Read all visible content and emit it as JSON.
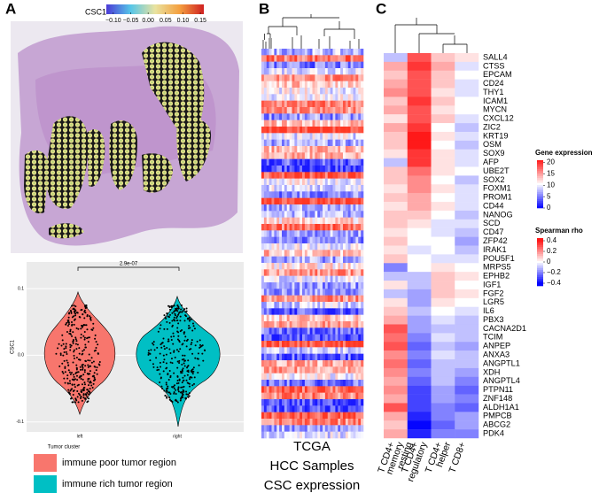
{
  "panels": {
    "a": "A",
    "b": "B",
    "c": "C"
  },
  "panel_a": {
    "colorbar": {
      "title": "CSC1",
      "lim": [
        -0.12,
        0.16
      ],
      "ticks": [
        {
          "value": -0.1,
          "label": "−0.10"
        },
        {
          "value": -0.05,
          "label": "−0.05"
        },
        {
          "value": 0,
          "label": "0.00"
        },
        {
          "value": 0.05,
          "label": "0.05"
        },
        {
          "value": 0.1,
          "label": "0.10"
        },
        {
          "value": 0.15,
          "label": "0.15"
        }
      ]
    },
    "violin": {
      "ylabel": "CSC1",
      "xlabel": "Tumor cluster",
      "categories": [
        "left",
        "right"
      ],
      "colors": [
        "#f8766d",
        "#00bfc4"
      ],
      "pvalue": "2.9e-07",
      "ylim": [
        -0.115,
        0.14
      ],
      "yticks": [
        0.1,
        {
          "value": 0,
          "label": "0.0"
        },
        -0.1
      ]
    },
    "legend": [
      "immune poor tumor region",
      "immune rich tumor region"
    ]
  },
  "panel_b": {
    "caption": [
      "TCGA",
      "HCC Samples",
      "CSC expression"
    ]
  },
  "panel_c": {
    "columns": [
      [
        "T CD4+",
        "memory",
        "resting"
      ],
      [
        "T CD4+",
        "regulatory"
      ],
      [
        "T CD4+",
        "helper"
      ],
      [
        "T CD8+"
      ]
    ],
    "genes": [
      "SALL4",
      "CTSS",
      "EPCAM",
      "CD24",
      "THY1",
      "ICAM1",
      "MYCN",
      "CXCL12",
      "ZIC2",
      "KRT19",
      "OSM",
      "SOX9",
      "AFP",
      "UBE2T",
      "SOX2",
      "FOXM1",
      "PROM1",
      "CD44",
      "NANOG",
      "SCD",
      "CD47",
      "ZFP42",
      "IRAK1",
      "POU5F1",
      "MRPS5",
      "EPHB2",
      "IGF1",
      "FGF2",
      "LGR5",
      "IL6",
      "PBX3",
      "CACNA2D1",
      "TCIM",
      "ANPEP",
      "ANXA3",
      "ANGPTL1",
      "XDH",
      "ANGPTL4",
      "PTPN11",
      "ZNF148",
      "ALDH1A1",
      "PMPCB",
      "ABCG2",
      "PDK4"
    ],
    "values": [
      [
        -0.1,
        0.3,
        0.1,
        0.05
      ],
      [
        0.15,
        0.35,
        0.15,
        -0.05
      ],
      [
        0.1,
        0.3,
        0.1,
        0
      ],
      [
        0.15,
        0.3,
        0.1,
        -0.05
      ],
      [
        0.2,
        0.3,
        0.05,
        -0.05
      ],
      [
        0.1,
        0.35,
        0.1,
        0
      ],
      [
        0.15,
        0.3,
        0.05,
        0
      ],
      [
        0.05,
        0.3,
        0.1,
        -0.05
      ],
      [
        0.15,
        0.35,
        0,
        -0.1
      ],
      [
        0.1,
        0.4,
        0.05,
        -0.05
      ],
      [
        0.1,
        0.4,
        0,
        -0.1
      ],
      [
        0.05,
        0.35,
        0.05,
        -0.05
      ],
      [
        -0.1,
        0.35,
        0.05,
        -0.05
      ],
      [
        0.1,
        0.25,
        0.05,
        0
      ],
      [
        0.1,
        0.2,
        0,
        -0.1
      ],
      [
        0.05,
        0.2,
        0.05,
        -0.05
      ],
      [
        0.1,
        0.15,
        0,
        -0.05
      ],
      [
        0.05,
        0.15,
        0.05,
        -0.05
      ],
      [
        0.1,
        0.1,
        0,
        -0.1
      ],
      [
        0.1,
        0.05,
        -0.05,
        -0.05
      ],
      [
        0.05,
        0,
        -0.05,
        -0.1
      ],
      [
        0.1,
        0,
        0,
        -0.15
      ],
      [
        0.05,
        -0.05,
        0,
        -0.1
      ],
      [
        0.1,
        0,
        -0.05,
        -0.05
      ],
      [
        -0.2,
        0,
        0.05,
        0
      ],
      [
        -0.1,
        -0.1,
        0.1,
        0.05
      ],
      [
        0.05,
        -0.1,
        0.1,
        0
      ],
      [
        -0.1,
        -0.15,
        0.1,
        0.05
      ],
      [
        0.05,
        -0.15,
        0.05,
        0
      ],
      [
        0.1,
        -0.1,
        0,
        -0.05
      ],
      [
        0.15,
        -0.15,
        -0.05,
        -0.1
      ],
      [
        0.3,
        -0.15,
        -0.1,
        -0.1
      ],
      [
        0.25,
        -0.2,
        -0.05,
        -0.1
      ],
      [
        0.3,
        -0.25,
        -0.1,
        -0.15
      ],
      [
        0.2,
        -0.2,
        -0.05,
        -0.1
      ],
      [
        0.25,
        -0.25,
        -0.1,
        -0.1
      ],
      [
        0.2,
        -0.2,
        -0.1,
        -0.15
      ],
      [
        0.15,
        -0.25,
        -0.1,
        -0.2
      ],
      [
        0.2,
        -0.3,
        -0.15,
        -0.25
      ],
      [
        0.15,
        -0.3,
        -0.15,
        -0.2
      ],
      [
        0.3,
        -0.3,
        -0.2,
        -0.25
      ],
      [
        0.15,
        -0.35,
        -0.2,
        -0.15
      ],
      [
        0.1,
        -0.4,
        -0.25,
        -0.15
      ],
      [
        0.15,
        -0.35,
        -0.2,
        -0.2
      ]
    ],
    "legend_expression": {
      "title": "Gene expression",
      "lim": [
        0,
        21
      ],
      "ticks": [
        20,
        15,
        10,
        5,
        0
      ]
    },
    "legend_rho": {
      "title": "Spearman rho",
      "lim": [
        -0.45,
        0.45
      ],
      "ticks": [
        0.4,
        0.2,
        0,
        {
          "value": -0.2,
          "label": "−0.2"
        },
        {
          "value": -0.4,
          "label": "−0.4"
        }
      ]
    }
  }
}
